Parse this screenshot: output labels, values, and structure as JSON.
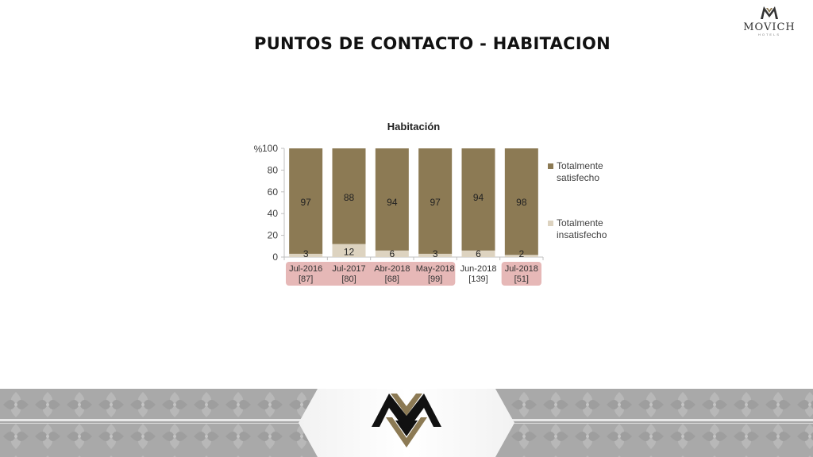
{
  "slide": {
    "title": "PUNTOS DE CONTACTO - HABITACION",
    "logo": {
      "brand": "MOVICH",
      "sub": "HOTELS"
    }
  },
  "colors": {
    "satisfied": "#8c7a54",
    "dissatisfied": "#ddd3c0",
    "highlight": "#e6b8b7",
    "axis": "#bfbfbf"
  },
  "chart_data": {
    "type": "bar",
    "stacked": true,
    "title": "Habitación",
    "ylabel": "%",
    "ylim": [
      0,
      100
    ],
    "yticks": [
      0,
      20,
      40,
      60,
      80,
      100
    ],
    "categories": [
      "Jul-2016",
      "Jul-2017",
      "Abr-2018",
      "May-2018",
      "Jun-2018",
      "Jul-2018"
    ],
    "sample_sizes": [
      "[87]",
      "[80]",
      "[68]",
      "[99]",
      "[139]",
      "[51]"
    ],
    "highlighted": [
      true,
      true,
      true,
      true,
      false,
      true
    ],
    "series": [
      {
        "name": "Totalmente insatisfecho",
        "values": [
          3,
          12,
          6,
          3,
          6,
          2
        ]
      },
      {
        "name": "Totalmente satisfecho",
        "values": [
          97,
          88,
          94,
          97,
          94,
          98
        ]
      }
    ],
    "legend_position": "right"
  }
}
